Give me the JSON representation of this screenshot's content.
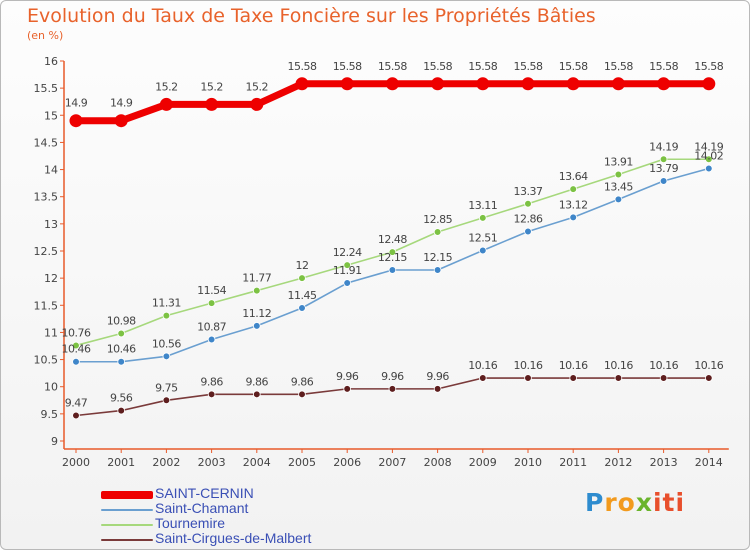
{
  "chart_data": {
    "type": "line",
    "title": "Evolution du Taux de Taxe Foncière sur les Propriétés Bâties",
    "ylabel": "(en %)",
    "xlabel": "",
    "ylim": [
      9,
      16
    ],
    "yticks": [
      "9",
      "9.5",
      "10",
      "10.5",
      "11",
      "11.5",
      "12",
      "12.5",
      "13",
      "13.5",
      "14",
      "14.5",
      "15",
      "15.5",
      "16"
    ],
    "categories": [
      "2000",
      "2001",
      "2002",
      "2003",
      "2004",
      "2005",
      "2006",
      "2007",
      "2008",
      "2009",
      "2010",
      "2011",
      "2012",
      "2013",
      "2014"
    ],
    "grid": false,
    "legend_position": "bottom-left",
    "series": [
      {
        "name": "SAINT-CERNIN",
        "color": "#ee0000",
        "values": [
          14.9,
          14.9,
          15.2,
          15.2,
          15.2,
          15.58,
          15.58,
          15.58,
          15.58,
          15.58,
          15.58,
          15.58,
          15.58,
          15.58,
          15.58
        ],
        "labels": [
          "14.9",
          "14.9",
          "15.2",
          "15.2",
          "15.2",
          "15.58",
          "15.58",
          "15.58",
          "15.58",
          "15.58",
          "15.58",
          "15.58",
          "15.58",
          "15.58",
          "15.58"
        ]
      },
      {
        "name": "Saint-Chamant",
        "color": "#6a9fd0",
        "marker_color": "#3f86c9",
        "values": [
          10.46,
          10.46,
          10.56,
          10.87,
          11.12,
          11.45,
          11.91,
          12.15,
          12.15,
          12.51,
          12.86,
          13.12,
          13.45,
          13.79,
          14.02
        ],
        "labels": [
          "10.46",
          "10.46",
          "10.56",
          "10.87",
          "11.12",
          "11.45",
          "11.91",
          "12.15",
          "12.15",
          "12.51",
          "12.86",
          "13.12",
          "13.45",
          "13.79",
          "14.02"
        ]
      },
      {
        "name": "Tournemire",
        "color": "#a6d87c",
        "marker_color": "#7cc243",
        "values": [
          10.76,
          10.98,
          11.31,
          11.54,
          11.77,
          12,
          12.24,
          12.48,
          12.85,
          13.11,
          13.37,
          13.64,
          13.91,
          14.19,
          14.19
        ],
        "labels": [
          "10.76",
          "10.98",
          "11.31",
          "11.54",
          "11.77",
          "12",
          "12.24",
          "12.48",
          "12.85",
          "13.11",
          "13.37",
          "13.64",
          "13.91",
          "14.19",
          "14.19"
        ]
      },
      {
        "name": "Saint-Cirgues-de-Malbert",
        "color": "#7a3a3a",
        "marker_color": "#5e1e1e",
        "values": [
          9.47,
          9.56,
          9.75,
          9.86,
          9.86,
          9.86,
          9.96,
          9.96,
          9.96,
          10.16,
          10.16,
          10.16,
          10.16,
          10.16,
          10.16
        ],
        "labels": [
          "9.47",
          "9.56",
          "9.75",
          "9.86",
          "9.86",
          "9.86",
          "9.96",
          "9.96",
          "9.96",
          "10.16",
          "10.16",
          "10.16",
          "10.16",
          "10.16",
          "10.16"
        ]
      }
    ]
  },
  "logo": {
    "p": "P",
    "ro": "ro",
    "x": "x",
    "iti": "iti"
  }
}
